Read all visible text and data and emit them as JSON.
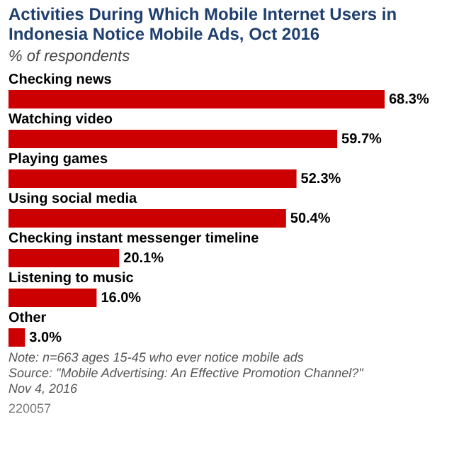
{
  "chart_data": {
    "type": "bar",
    "orientation": "horizontal",
    "title": "Activities During Which Mobile Internet Users in Indonesia Notice Mobile Ads, Oct 2016",
    "subtitle": "% of respondents",
    "categories": [
      "Checking news",
      "Watching video",
      "Playing games",
      "Using social media",
      "Checking instant messenger timeline",
      "Listening to music",
      "Other"
    ],
    "values": [
      68.3,
      59.7,
      52.3,
      50.4,
      20.1,
      16.0,
      3.0
    ],
    "value_labels": [
      "68.3%",
      "59.7%",
      "52.3%",
      "50.4%",
      "20.1%",
      "16.0%",
      "3.0%"
    ],
    "color": "#cc0000",
    "annotations": [
      "Note: n=663 ages 15-45 who ever notice mobile ads",
      "Source: \"Mobile Advertising: An Effective Promotion Channel?\" Nov 4, 2016",
      "220057"
    ],
    "grid": false
  }
}
